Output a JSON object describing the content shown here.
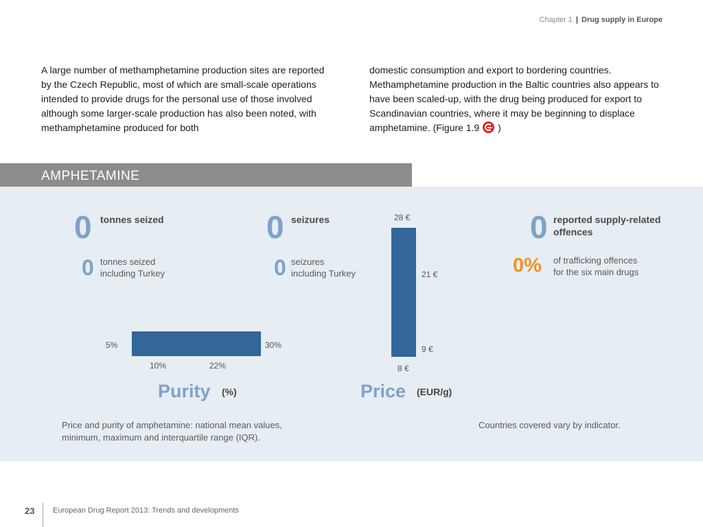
{
  "header": {
    "chapter": "Chapter 1",
    "separator": "|",
    "title": "Drug supply in Europe"
  },
  "intro": {
    "col1": "A large number of methamphetamine production sites are reported by the Czech Republic, most of which are small-scale operations intended to provide drugs for the personal use of those involved although some larger-scale production has also been noted, with methamphetamine produced for both",
    "col2_before": "domestic consumption and export to bordering countries. Methamphetamine production in the Baltic countries also appears to have been scaled-up, with the drug being produced for export to Scandinavian countries, where it may be beginning to displace amphetamine. (Figure 1.9",
    "col2_after": ")",
    "figure_icon": "figure-link-icon"
  },
  "section": {
    "title": "AMPHETAMINE"
  },
  "stats": {
    "tonnes": {
      "value": "0",
      "label": "tonnes seized",
      "turkey_value": "0",
      "turkey_label_1": "tonnes seized",
      "turkey_label_2": "including Turkey"
    },
    "seizures": {
      "value": "0",
      "label": "seizures",
      "turkey_value": "0",
      "turkey_label_1": "seizures",
      "turkey_label_2": "including Turkey"
    },
    "offences": {
      "value": "0",
      "label_1": "reported supply-related",
      "label_2": "offences",
      "pct_value": "0%",
      "pct_label_1": "of trafficking offences",
      "pct_label_2": "for the six main drugs"
    }
  },
  "chart_data": [
    {
      "type": "range",
      "title": "Purity",
      "unit": "(%)",
      "min": 5,
      "max": 30,
      "iqr": [
        10,
        22
      ],
      "tick_labels": {
        "min": "5%",
        "max": "30%",
        "q1": "10%",
        "q3": "22%"
      }
    },
    {
      "type": "range",
      "title": "Price",
      "unit": "(EUR/g)",
      "min": 8,
      "max": 28,
      "iqr": [
        9,
        21
      ],
      "tick_labels": {
        "min": "8 €",
        "max": "28 €",
        "q1": "9 €",
        "q3": "21 €"
      }
    }
  ],
  "captions": {
    "left_1": "Price and purity of  amphetamine: national mean values,",
    "left_2": "minimum, maximum and interquartile range (IQR).",
    "right": "Countries covered vary by indicator."
  },
  "footer": {
    "page": "23",
    "title": "European Drug Report 2013: Trends and developments"
  }
}
